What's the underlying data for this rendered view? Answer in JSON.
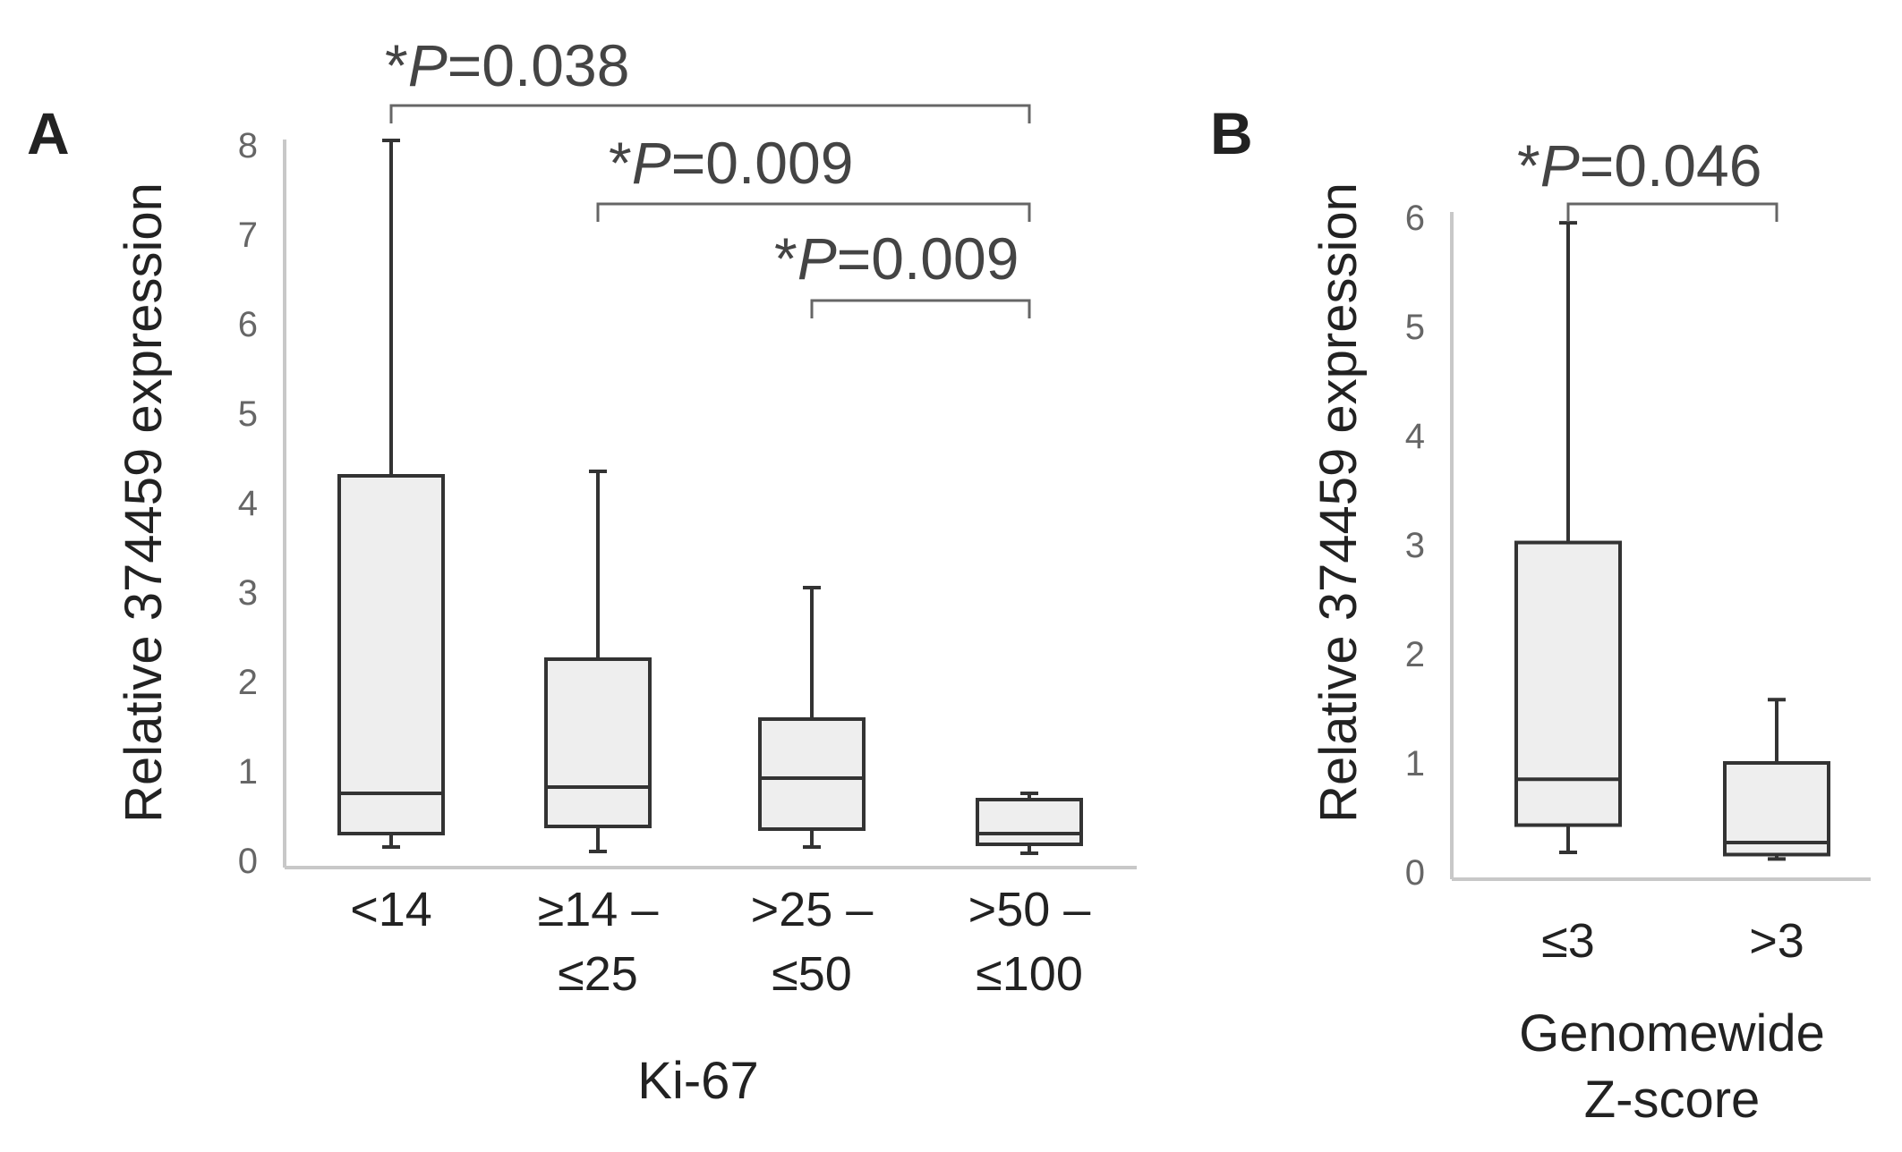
{
  "chart_data": [
    {
      "panel": "A",
      "type": "box",
      "ylabel": "Relative 374459 expression",
      "xlabel": "Ki-67",
      "ylim": [
        0,
        8
      ],
      "yticks": [
        0,
        1,
        2,
        3,
        4,
        5,
        6,
        7,
        8
      ],
      "categories": [
        {
          "lines": [
            "<14"
          ],
          "min": 0.15,
          "q1": 0.3,
          "median": 0.75,
          "q3": 4.3,
          "max": 8.05
        },
        {
          "lines": [
            "≥14 –",
            "≤25"
          ],
          "min": 0.1,
          "q1": 0.38,
          "median": 0.82,
          "q3": 2.25,
          "max": 4.35
        },
        {
          "lines": [
            ">25 –",
            "≤50"
          ],
          "min": 0.15,
          "q1": 0.35,
          "median": 0.92,
          "q3": 1.58,
          "max": 3.05
        },
        {
          "lines": [
            ">50 –",
            "≤100"
          ],
          "min": 0.08,
          "q1": 0.18,
          "median": 0.3,
          "q3": 0.68,
          "max": 0.75
        }
      ],
      "comparisons": [
        {
          "from": 0,
          "to": 3,
          "star": "*",
          "p": "P",
          "value": "=0.038"
        },
        {
          "from": 1,
          "to": 3,
          "star": "*",
          "p": "P",
          "value": "=0.009"
        },
        {
          "from": 2,
          "to": 3,
          "star": "*",
          "p": "P",
          "value": "=0.009"
        }
      ]
    },
    {
      "panel": "B",
      "type": "box",
      "ylabel": "Relative 374459 expression",
      "xlabel": [
        "Genomewide",
        "Z-score"
      ],
      "ylim": [
        0,
        6
      ],
      "yticks": [
        0,
        1,
        2,
        3,
        4,
        5,
        6
      ],
      "categories": [
        {
          "lines": [
            "≤3"
          ],
          "min": 0.18,
          "q1": 0.43,
          "median": 0.85,
          "q3": 3.02,
          "max": 5.95
        },
        {
          "lines": [
            ">3"
          ],
          "min": 0.12,
          "q1": 0.16,
          "median": 0.27,
          "q3": 1.0,
          "max": 1.58
        }
      ],
      "comparisons": [
        {
          "from": 0,
          "to": 1,
          "star": "*",
          "p": "P",
          "value": "=0.046"
        }
      ]
    }
  ]
}
